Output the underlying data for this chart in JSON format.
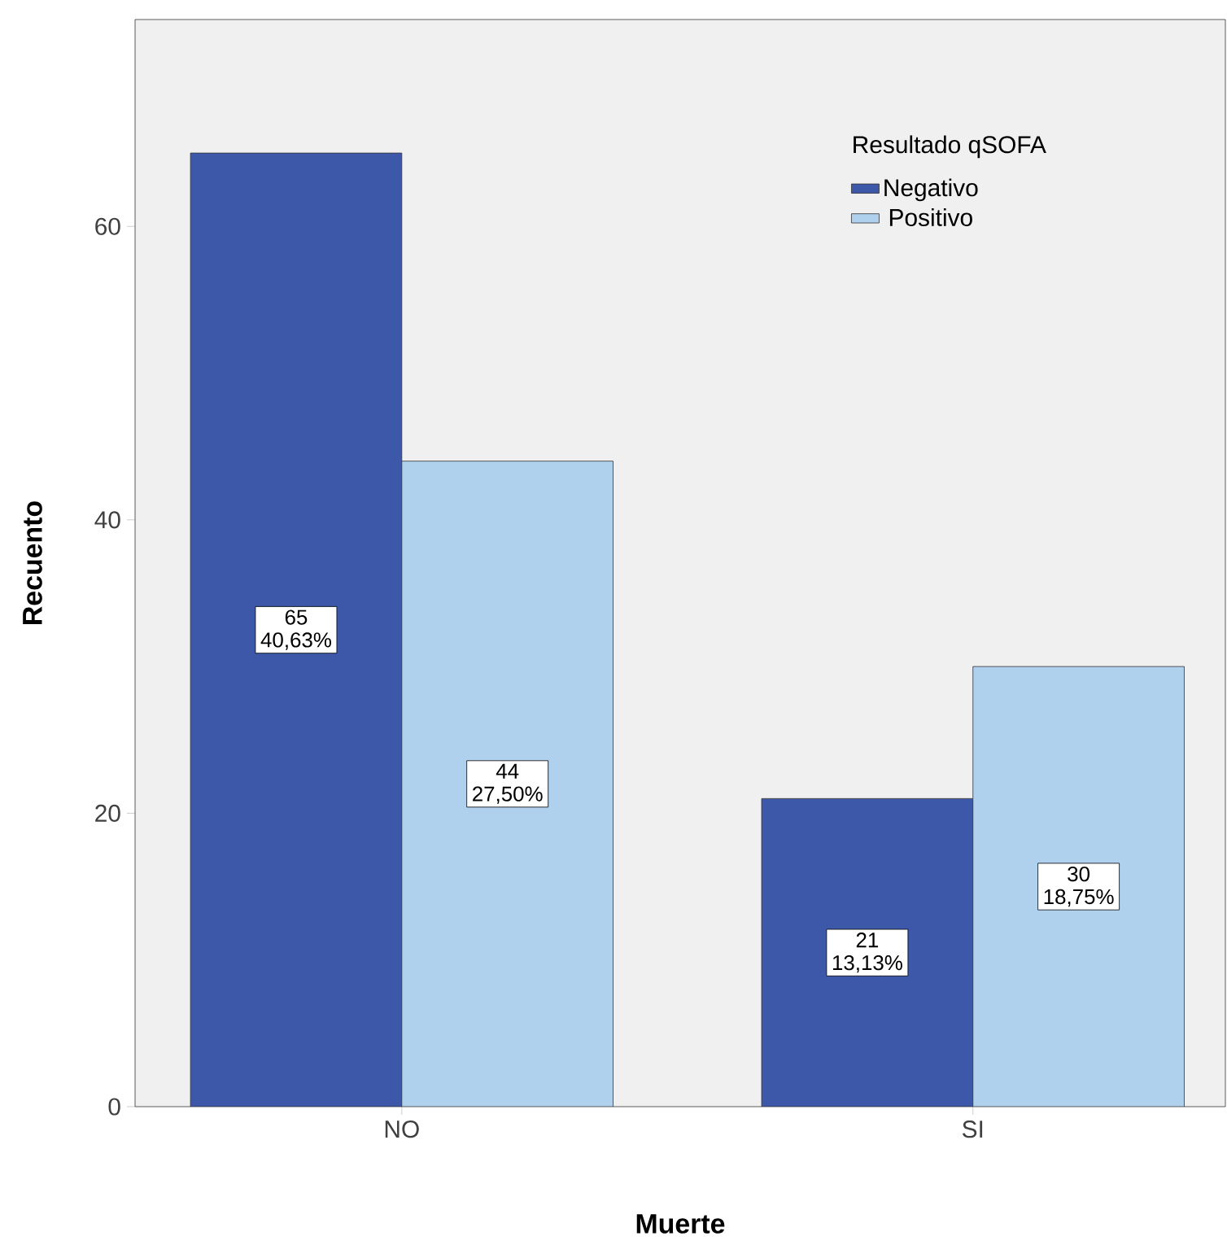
{
  "chart_data": {
    "type": "bar",
    "xlabel": "Muerte",
    "ylabel": "Recuento",
    "legend_title": "Resultado qSOFA",
    "legend": "top right",
    "categories": [
      "NO",
      "SI"
    ],
    "series": [
      {
        "name": "Negativo",
        "color": "#3d57a9",
        "values": [
          65,
          21
        ],
        "value_labels": [
          "65 40,63%",
          "21 13,13%"
        ]
      },
      {
        "name": "Positivo",
        "color": "#afd1ee",
        "values": [
          44,
          30
        ],
        "value_labels": [
          "44 27,50%",
          "30 18,75%"
        ]
      }
    ],
    "ylim": [
      0,
      74.1
    ],
    "yticks": [
      0,
      20,
      40,
      60
    ]
  }
}
